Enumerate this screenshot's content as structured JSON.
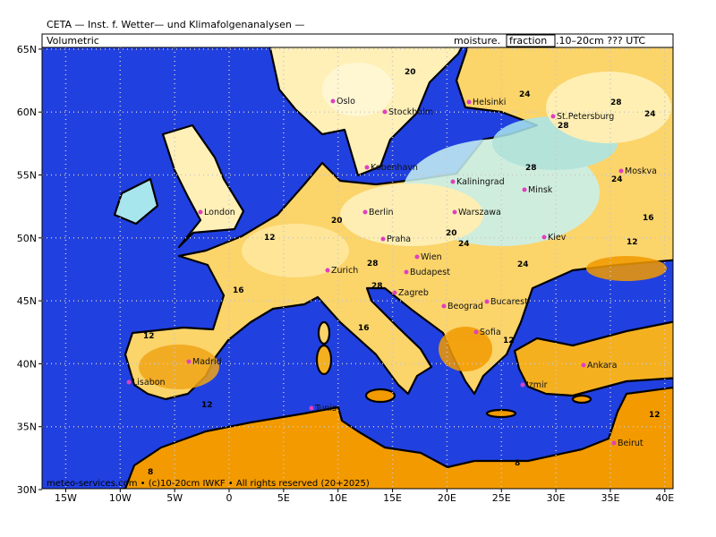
{
  "header": {
    "title": "CETA — Inst. f. Wetter— und Klimafolgenanalysen —",
    "left_label": "Volumetric",
    "right_label": {
      "prefix": "moisture.",
      "boxed": "fraction",
      "suffix": ".10–20cm ??? UTC"
    }
  },
  "map": {
    "lon_ticks": [
      {
        "value": -15,
        "label": "15W"
      },
      {
        "value": -10,
        "label": "10W"
      },
      {
        "value": -5,
        "label": "5W"
      },
      0,
      {
        "value": 5,
        "label": "5E"
      },
      {
        "value": 10,
        "label": "10E"
      },
      {
        "value": 15,
        "label": "15E"
      },
      {
        "value": 20,
        "label": "20E"
      },
      {
        "value": 25,
        "label": "25E"
      },
      {
        "value": 30,
        "label": "30E"
      },
      {
        "value": 35,
        "label": "35E"
      },
      {
        "value": 40,
        "label": "40E"
      }
    ],
    "lat_ticks": [
      {
        "value": 65,
        "label": "65N"
      },
      {
        "value": 60,
        "label": "60N"
      },
      {
        "value": 55,
        "label": "55N"
      },
      {
        "value": 50,
        "label": "50N"
      },
      {
        "value": 45,
        "label": "45N"
      },
      {
        "value": 40,
        "label": "40N"
      },
      {
        "value": 35,
        "label": "35N"
      },
      {
        "value": 30,
        "label": "30N"
      }
    ],
    "cities": [
      "Oslo",
      "Stockholm",
      "Helsinki",
      "St.Petersburg",
      "Kobenhavn",
      "Kaliningrad",
      "Minsk",
      "Moskva",
      "London",
      "Berlin",
      "Warszawa",
      "Kiev",
      "Praha",
      "Wien",
      "Zurich",
      "Budapest",
      "Zagreb",
      "Beograd",
      "Bucarest",
      "Sofia",
      "Madrid",
      "Lisabon",
      "Tunis",
      "Ankara",
      "Izmir",
      "Beirut"
    ],
    "contour_labels": [
      20,
      24,
      28,
      28,
      24,
      28,
      24,
      20,
      28,
      20,
      16,
      12,
      24,
      28,
      24,
      16,
      12,
      12,
      12,
      8,
      12,
      16,
      12,
      8
    ]
  },
  "footer": "meteo-services.com • (c)10-20cm IWKF • All rights reserved (20+2025)"
}
